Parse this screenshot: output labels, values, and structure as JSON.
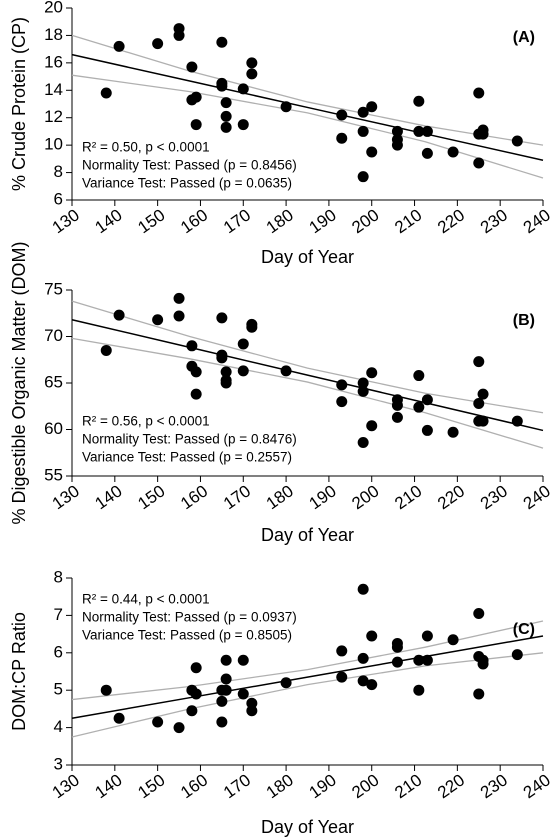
{
  "chart_data": [
    {
      "type": "scatter",
      "label": "(A)",
      "xlabel": "Day of Year",
      "ylabel": "% Crude Protein (CP)",
      "annotations": [
        "R² = 0.50, p < 0.0001",
        "Normality Test: Passed (p = 0.8456)",
        "Variance Test: Passed (p = 0.0635)"
      ],
      "color": "#000000",
      "line_color": "#000000",
      "band_color": "#b0b0b0",
      "x": [
        138,
        141,
        150,
        155,
        155,
        158,
        158,
        159,
        159,
        165,
        165,
        165,
        166,
        166,
        166,
        170,
        170,
        172,
        172,
        180,
        193,
        193,
        198,
        198,
        198,
        200,
        200,
        206,
        206,
        206,
        211,
        211,
        213,
        213,
        219,
        225,
        225,
        225,
        226,
        226,
        234
      ],
      "values": [
        13.8,
        17.2,
        17.4,
        18.5,
        18.0,
        15.7,
        13.3,
        13.5,
        11.5,
        17.5,
        14.5,
        14.3,
        13.1,
        12.1,
        11.3,
        14.1,
        11.5,
        16.0,
        15.2,
        12.8,
        12.2,
        10.5,
        12.4,
        11.0,
        7.7,
        12.8,
        9.5,
        10.4,
        11.0,
        10.0,
        13.2,
        11.0,
        11.0,
        9.4,
        9.5,
        13.8,
        10.8,
        8.7,
        11.1,
        10.8,
        10.3
      ],
      "fit_x": [
        130,
        157.5,
        185,
        212.5,
        240
      ],
      "fit": [
        16.6,
        14.675,
        12.75,
        10.825,
        8.9
      ],
      "ci_upper": [
        18.0,
        15.4,
        13.15,
        11.4,
        10.0
      ],
      "ci_lower": [
        15.1,
        13.9,
        12.35,
        10.25,
        7.6
      ],
      "xlim": [
        130,
        240
      ],
      "xticks": [
        130,
        140,
        150,
        160,
        170,
        180,
        190,
        200,
        210,
        220,
        230,
        240
      ],
      "ylim": [
        6,
        20
      ],
      "yticks": [
        6,
        8,
        10,
        12,
        14,
        16,
        18,
        20
      ]
    },
    {
      "type": "scatter",
      "label": "(B)",
      "xlabel": "Day of Year",
      "ylabel": "% Digestible Organic Matter (DOM)",
      "annotations": [
        "R² = 0.56, p < 0.0001",
        "Normality Test: Passed (p = 0.8476)",
        "Variance Test: Passed (p = 0.2557)"
      ],
      "color": "#000000",
      "line_color": "#000000",
      "band_color": "#b0b0b0",
      "x": [
        138,
        141,
        150,
        155,
        155,
        158,
        158,
        159,
        159,
        165,
        165,
        165,
        166,
        166,
        166,
        170,
        170,
        172,
        172,
        180,
        193,
        193,
        198,
        198,
        198,
        200,
        200,
        206,
        206,
        206,
        211,
        211,
        213,
        213,
        219,
        225,
        225,
        225,
        226,
        226,
        234
      ],
      "values": [
        68.5,
        72.3,
        71.8,
        74.1,
        72.2,
        69.0,
        66.8,
        66.2,
        63.8,
        72.0,
        68.0,
        67.7,
        66.2,
        65.3,
        65.0,
        69.2,
        66.3,
        71.3,
        71.0,
        66.3,
        64.8,
        63.0,
        65.0,
        64.1,
        58.6,
        66.1,
        60.4,
        62.6,
        63.2,
        61.3,
        65.8,
        62.4,
        63.2,
        59.9,
        59.7,
        67.3,
        62.8,
        60.9,
        63.8,
        60.9,
        60.9
      ],
      "fit_x": [
        130,
        157.5,
        185,
        212.5,
        240
      ],
      "fit": [
        71.8,
        68.83,
        65.85,
        62.88,
        59.9
      ],
      "ci_upper": [
        73.8,
        70.0,
        66.6,
        63.9,
        61.8
      ],
      "ci_lower": [
        69.8,
        67.6,
        65.1,
        61.8,
        58.0
      ],
      "xlim": [
        130,
        240
      ],
      "xticks": [
        130,
        140,
        150,
        160,
        170,
        180,
        190,
        200,
        210,
        220,
        230,
        240
      ],
      "ylim": [
        55,
        75
      ],
      "yticks": [
        55,
        60,
        65,
        70,
        75
      ]
    },
    {
      "type": "scatter",
      "label": "(C)",
      "xlabel": "Day of Year",
      "ylabel": "DOM:CP Ratio",
      "annotations": [
        "R² = 0.44, p < 0.0001",
        "Normality Test: Passed (p = 0.0937)",
        "Variance Test: Passed (p = 0.8505)"
      ],
      "color": "#000000",
      "line_color": "#000000",
      "band_color": "#b0b0b0",
      "x": [
        138,
        141,
        150,
        155,
        158,
        158,
        159,
        159,
        165,
        165,
        165,
        166,
        166,
        166,
        170,
        170,
        172,
        172,
        180,
        193,
        193,
        198,
        198,
        198,
        200,
        200,
        206,
        206,
        206,
        211,
        211,
        213,
        213,
        219,
        225,
        225,
        225,
        226,
        226,
        234
      ],
      "values": [
        5.0,
        4.25,
        4.15,
        4.0,
        5.0,
        4.45,
        4.9,
        5.6,
        5.0,
        4.7,
        4.15,
        5.8,
        5.3,
        5.0,
        5.8,
        4.9,
        4.65,
        4.45,
        5.2,
        6.05,
        5.35,
        7.7,
        5.85,
        5.25,
        6.45,
        5.15,
        6.15,
        6.25,
        5.75,
        5.0,
        5.8,
        6.45,
        5.8,
        6.35,
        7.05,
        5.9,
        4.9,
        5.8,
        5.7,
        5.95
      ],
      "fit_x": [
        130,
        157.5,
        185,
        212.5,
        240
      ],
      "fit": [
        4.25,
        4.8,
        5.35,
        5.9,
        6.45
      ],
      "ci_upper": [
        4.75,
        5.1,
        5.55,
        6.15,
        6.85
      ],
      "ci_lower": [
        3.75,
        4.5,
        5.15,
        5.65,
        6.0
      ],
      "xlim": [
        130,
        240
      ],
      "xticks": [
        130,
        140,
        150,
        160,
        170,
        180,
        190,
        200,
        210,
        220,
        230,
        240
      ],
      "ylim": [
        3,
        8
      ],
      "yticks": [
        3,
        4,
        5,
        6,
        7,
        8
      ]
    }
  ]
}
